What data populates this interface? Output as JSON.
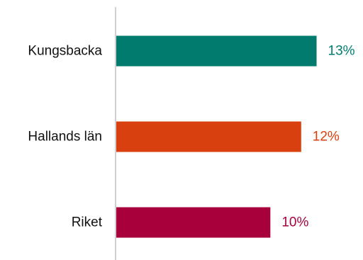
{
  "chart_data": {
    "type": "bar",
    "orientation": "horizontal",
    "categories": [
      "Kungsbacka",
      "Hallands län",
      "Riket"
    ],
    "values": [
      13,
      12,
      10
    ],
    "value_labels": [
      "13%",
      "12%",
      "10%"
    ],
    "colors": [
      "#007b6e",
      "#d9400f",
      "#a8003a"
    ],
    "axis_color": "#d0d0d0",
    "xlim": [
      0,
      15
    ],
    "grid": false,
    "legend": "none"
  }
}
